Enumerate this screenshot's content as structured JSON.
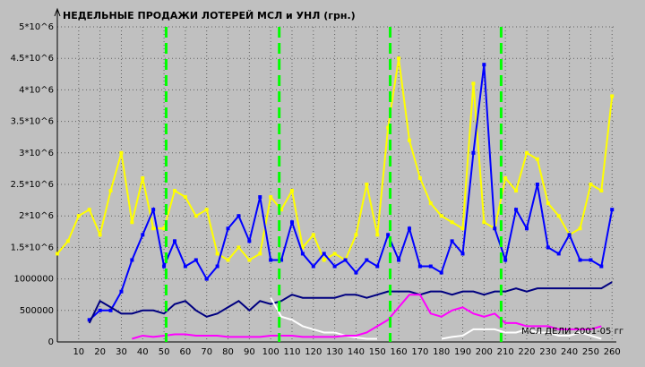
{
  "chart_data": {
    "type": "line",
    "title": "НЕДЕЛЬНЫЕ ПРОДАЖИ ЛОТЕРЕЙ МСЛ и УНЛ (грн.)",
    "annotation": "МСЛ ДЕЛИ 2001-05 гг",
    "xlim": [
      0,
      262
    ],
    "xticks": [
      10,
      20,
      30,
      40,
      50,
      60,
      70,
      80,
      90,
      100,
      110,
      120,
      130,
      140,
      150,
      160,
      170,
      180,
      190,
      200,
      210,
      220,
      230,
      240,
      250,
      260
    ],
    "ylim": [
      0,
      5000000
    ],
    "yticks": [
      0,
      500000,
      1000000,
      {
        "value": 1500000,
        "label": "1.5*10^6"
      },
      {
        "value": 2000000,
        "label": "2*10^6"
      },
      {
        "value": 2500000,
        "label": "2.5*10^6"
      },
      {
        "value": 3000000,
        "label": "3*10^6"
      },
      {
        "value": 3500000,
        "label": "3.5*10^6"
      },
      {
        "value": 4000000,
        "label": "4*10^6"
      },
      {
        "value": 4500000,
        "label": "4.5*10^6"
      },
      {
        "value": 5000000,
        "label": "5*10^6"
      }
    ],
    "grid": true,
    "vlines": [
      51,
      104,
      156,
      208
    ],
    "vline_color": "#00ff00",
    "x": [
      0,
      5,
      10,
      15,
      20,
      25,
      30,
      35,
      40,
      45,
      50,
      55,
      60,
      65,
      70,
      75,
      80,
      85,
      90,
      95,
      100,
      105,
      110,
      115,
      120,
      125,
      130,
      135,
      140,
      145,
      150,
      155,
      160,
      165,
      170,
      175,
      180,
      185,
      190,
      195,
      200,
      205,
      210,
      215,
      220,
      225,
      230,
      235,
      240,
      245,
      250,
      255,
      260
    ],
    "series": [
      {
        "color": "#ffff00",
        "markers": true,
        "values": [
          1400000,
          1600000,
          2000000,
          2100000,
          1700000,
          2400000,
          3000000,
          1900000,
          2600000,
          1800000,
          1800000,
          2400000,
          2300000,
          2000000,
          2100000,
          1400000,
          1300000,
          1500000,
          1300000,
          1400000,
          2300000,
          2100000,
          2400000,
          1500000,
          1700000,
          1300000,
          1400000,
          1300000,
          1700000,
          2500000,
          1700000,
          3400000,
          4500000,
          3200000,
          2600000,
          2200000,
          2000000,
          1900000,
          1800000,
          4100000,
          1900000,
          1800000,
          2600000,
          2400000,
          3000000,
          2900000,
          2200000,
          2000000,
          1700000,
          1800000,
          2500000,
          2400000,
          3900000
        ]
      },
      {
        "color": "#0000ff",
        "markers": true,
        "values": [
          null,
          null,
          null,
          350000,
          500000,
          500000,
          800000,
          1300000,
          1700000,
          2100000,
          1200000,
          1600000,
          1200000,
          1300000,
          1000000,
          1200000,
          1800000,
          2000000,
          1600000,
          2300000,
          1300000,
          1300000,
          1900000,
          1400000,
          1200000,
          1400000,
          1200000,
          1300000,
          1100000,
          1300000,
          1200000,
          1700000,
          1300000,
          1800000,
          1200000,
          1200000,
          1100000,
          1600000,
          1400000,
          3000000,
          4400000,
          1800000,
          1300000,
          2100000,
          1800000,
          2500000,
          1500000,
          1400000,
          1700000,
          1300000,
          1300000,
          1200000,
          2100000
        ]
      },
      {
        "color": "#000080",
        "markers": false,
        "values": [
          null,
          null,
          null,
          300000,
          650000,
          550000,
          450000,
          450000,
          500000,
          500000,
          450000,
          600000,
          650000,
          500000,
          400000,
          450000,
          550000,
          650000,
          500000,
          650000,
          600000,
          650000,
          750000,
          700000,
          700000,
          700000,
          700000,
          750000,
          750000,
          700000,
          750000,
          800000,
          800000,
          800000,
          750000,
          800000,
          800000,
          750000,
          800000,
          800000,
          750000,
          800000,
          800000,
          850000,
          800000,
          850000,
          850000,
          850000,
          850000,
          850000,
          850000,
          850000,
          950000
        ]
      },
      {
        "color": "#ffffff",
        "markers": false,
        "values": [
          null,
          null,
          null,
          null,
          null,
          null,
          null,
          null,
          null,
          null,
          null,
          null,
          null,
          null,
          null,
          null,
          null,
          null,
          null,
          null,
          700000,
          400000,
          350000,
          250000,
          200000,
          150000,
          150000,
          100000,
          70000,
          50000,
          50000,
          null,
          null,
          null,
          null,
          null,
          50000,
          80000,
          100000,
          200000,
          200000,
          200000,
          150000,
          150000,
          200000,
          150000,
          150000,
          100000,
          100000,
          150000,
          100000,
          50000,
          null
        ]
      },
      {
        "color": "#ff00ff",
        "markers": false,
        "values": [
          null,
          null,
          null,
          null,
          null,
          null,
          null,
          50000,
          100000,
          80000,
          100000,
          120000,
          120000,
          100000,
          100000,
          100000,
          80000,
          80000,
          80000,
          80000,
          100000,
          100000,
          100000,
          80000,
          80000,
          80000,
          80000,
          100000,
          100000,
          150000,
          250000,
          350000,
          550000,
          750000,
          750000,
          450000,
          400000,
          500000,
          550000,
          450000,
          400000,
          450000,
          300000,
          300000,
          250000,
          250000,
          250000,
          200000,
          200000,
          200000,
          200000,
          250000,
          null
        ]
      }
    ]
  }
}
